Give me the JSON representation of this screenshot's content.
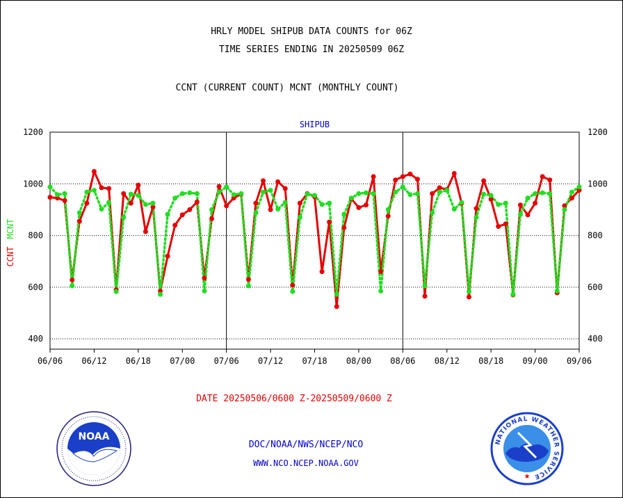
{
  "header": {
    "title_line1": "HRLY MODEL SHIPUB DATA COUNTS for 06Z",
    "title_line2": "TIME SERIES ENDING IN 20250509 06Z",
    "subtitle": "CCNT (CURRENT COUNT) MCNT (MONTHLY COUNT)"
  },
  "footer": {
    "date_range": "DATE 20250506/0600 Z-20250509/0600 Z",
    "credit_line1": "DOC/NOAA/NWS/NCEP/NCO",
    "credit_line2": "WWW.NCO.NCEP.NOAA.GOV"
  },
  "logos": {
    "noaa": "NOAA",
    "nws_ring": "NATIONAL WEATHER SERVICE"
  },
  "colors": {
    "ccnt": "#e60000",
    "mcnt": "#22dd22",
    "panel_title": "#0000cc"
  },
  "chart_data": {
    "type": "line",
    "title": "SHIPUB",
    "ylabel_left": [
      "CCNT",
      "MCNT"
    ],
    "ylim": [
      360,
      1200
    ],
    "yticks": [
      400,
      600,
      800,
      1000,
      1200
    ],
    "grid": "horizontal dotted lines at 400, 600, 800, 1000",
    "panels": [
      {
        "start": "06/06",
        "end": "07/06"
      },
      {
        "start": "07/06",
        "end": "08/06"
      },
      {
        "start": "08/06",
        "end": "09/06"
      }
    ],
    "x_tick_labels": [
      "06/06",
      "06/12",
      "06/18",
      "07/00",
      "07/06",
      "07/12",
      "07/18",
      "08/00",
      "08/06",
      "08/12",
      "08/18",
      "09/00",
      "09/06"
    ],
    "x_range_hours": [
      0,
      72
    ],
    "series": [
      {
        "name": "CCNT",
        "x": [
          0,
          1,
          2,
          3,
          4,
          5,
          6,
          7,
          8,
          9,
          10,
          11,
          12,
          13,
          14,
          15,
          16,
          17,
          18,
          19,
          20,
          21,
          22,
          23,
          24,
          25,
          26,
          27,
          28,
          29,
          30,
          31,
          32,
          33,
          34,
          35,
          36,
          37,
          38,
          39,
          40,
          41,
          42,
          43,
          44,
          45,
          46,
          47,
          48,
          49,
          50,
          51,
          52,
          53,
          54,
          55,
          56,
          57,
          58,
          59,
          60,
          61,
          62,
          63,
          64,
          65,
          66,
          67,
          68,
          69,
          70,
          71,
          72
        ],
        "values": [
          948,
          945,
          935,
          628,
          855,
          925,
          1048,
          985,
          982,
          590,
          962,
          925,
          995,
          815,
          910,
          585,
          720,
          840,
          880,
          900,
          930,
          635,
          865,
          990,
          915,
          945,
          960,
          630,
          925,
          1012,
          900,
          1008,
          982,
          608,
          925,
          962,
          950,
          660,
          852,
          525,
          830,
          942,
          908,
          918,
          1028,
          660,
          875,
          1015,
          1028,
          1038,
          1018,
          565,
          962,
          985,
          978,
          1040,
          925,
          562,
          905,
          1012,
          940,
          835,
          845,
          570,
          918,
          880,
          925,
          1028,
          1015,
          578,
          915,
          945,
          975
        ]
      },
      {
        "name": "MCNT",
        "x": [
          0,
          1,
          2,
          3,
          4,
          5,
          6,
          7,
          8,
          9,
          10,
          11,
          12,
          13,
          14,
          15,
          16,
          17,
          18,
          19,
          20,
          21,
          22,
          23,
          24,
          25,
          26,
          27,
          28,
          29,
          30,
          31,
          32,
          33,
          34,
          35,
          36,
          37,
          38,
          39,
          40,
          41,
          42,
          43,
          44,
          45,
          46,
          47,
          48,
          49,
          50,
          51,
          52,
          53,
          54,
          55,
          56,
          57,
          58,
          59,
          60,
          61,
          62,
          63,
          64,
          65,
          66,
          67,
          68,
          69,
          70,
          71,
          72
        ],
        "values": [
          988,
          958,
          962,
          605,
          888,
          968,
          975,
          902,
          928,
          583,
          870,
          960,
          955,
          920,
          925,
          572,
          882,
          945,
          962,
          965,
          962,
          585,
          900,
          968,
          988,
          958,
          962,
          605,
          888,
          968,
          975,
          902,
          928,
          583,
          870,
          960,
          955,
          920,
          925,
          572,
          882,
          945,
          962,
          965,
          962,
          585,
          900,
          968,
          988,
          958,
          962,
          605,
          888,
          968,
          975,
          902,
          928,
          583,
          870,
          960,
          955,
          920,
          925,
          572,
          882,
          945,
          962,
          965,
          962,
          585,
          900,
          968,
          988
        ]
      }
    ]
  }
}
